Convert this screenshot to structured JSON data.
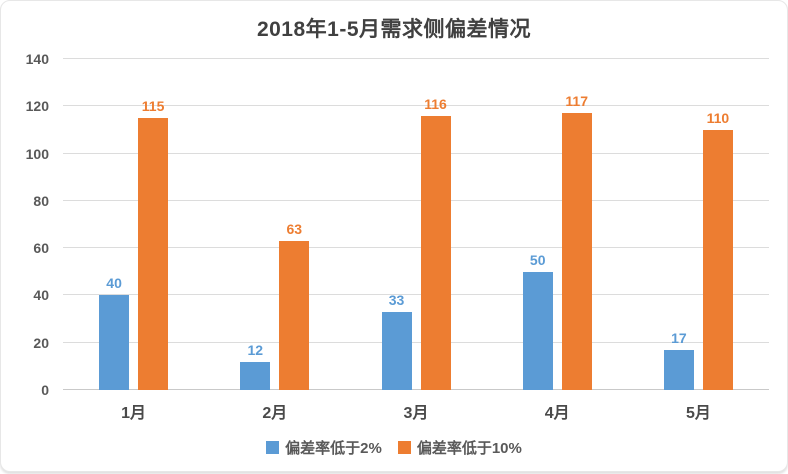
{
  "title": "2018年1-5月需求侧偏差情况",
  "chart_data": {
    "type": "bar",
    "title": "2018年1-5月需求侧偏差情况",
    "categories": [
      "1月",
      "2月",
      "3月",
      "4月",
      "5月"
    ],
    "series": [
      {
        "name": "偏差率低于2%",
        "color": "#5B9BD5",
        "values": [
          40,
          12,
          33,
          50,
          17
        ]
      },
      {
        "name": "偏差率低于10%",
        "color": "#ED7D31",
        "values": [
          115,
          63,
          116,
          117,
          110
        ]
      }
    ],
    "xlabel": "",
    "ylabel": "",
    "ylim": [
      0,
      140
    ],
    "ytick_step": 20,
    "yticks": [
      0,
      20,
      40,
      60,
      80,
      100,
      120,
      140
    ],
    "grid": true,
    "data_labels": true,
    "legend_position": "bottom"
  },
  "style_colors": {
    "gridline": "#dcdcdc",
    "axis_text": "#595959",
    "title_text": "#404040",
    "series_blue": "#5B9BD5",
    "series_orange": "#ED7D31"
  }
}
